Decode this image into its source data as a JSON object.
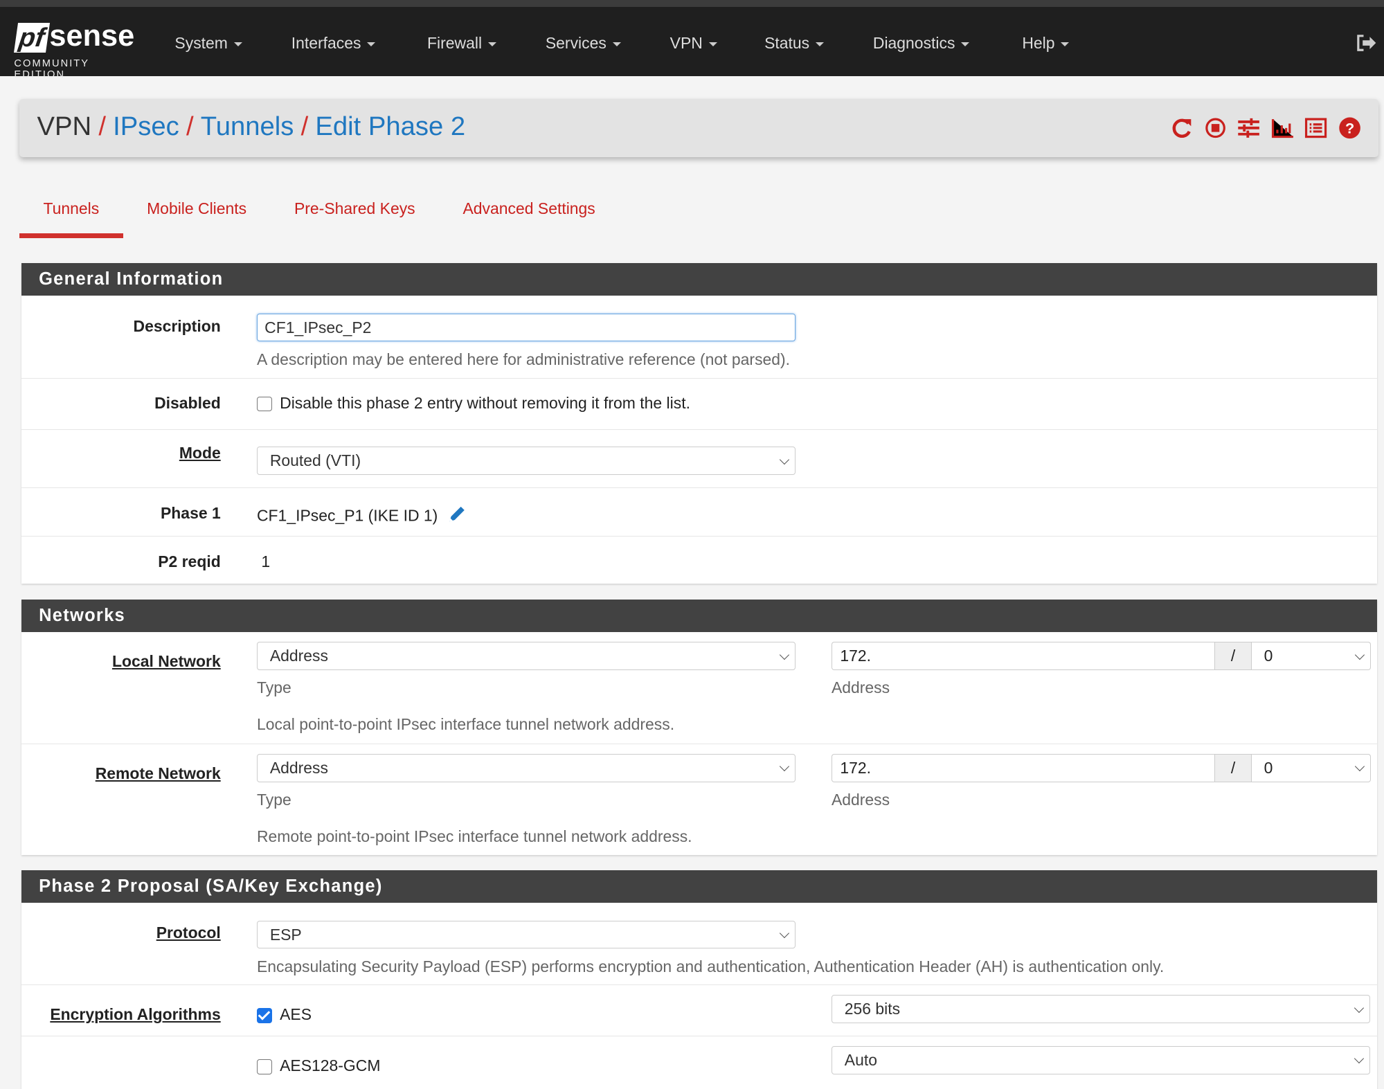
{
  "nav": {
    "logo_text": "pfsense",
    "logo_sub": "COMMUNITY EDITION",
    "menus": [
      "System",
      "Interfaces",
      "Firewall",
      "Services",
      "VPN",
      "Status",
      "Diagnostics",
      "Help"
    ]
  },
  "breadcrumb": {
    "root": "VPN",
    "items": [
      "IPsec",
      "Tunnels",
      "Edit Phase 2"
    ]
  },
  "header_icons": [
    "restart-icon",
    "stop-icon",
    "sliders-icon",
    "bar-chart-icon",
    "list-icon",
    "help-icon"
  ],
  "accent_color": "#d0312d",
  "tabs": [
    "Tunnels",
    "Mobile Clients",
    "Pre-Shared Keys",
    "Advanced Settings"
  ],
  "general": {
    "title": "General Information",
    "description": {
      "label": "Description",
      "value": "CF1_IPsec_P2",
      "help": "A description may be entered here for administrative reference (not parsed)."
    },
    "disabled": {
      "label": "Disabled",
      "text": "Disable this phase 2 entry without removing it from the list.",
      "checked": false
    },
    "mode": {
      "label": "Mode",
      "value": "Routed (VTI)"
    },
    "phase1": {
      "label": "Phase 1",
      "value": "CF1_IPsec_P1 (IKE ID 1)"
    },
    "reqid": {
      "label": "P2 reqid",
      "value": "1"
    }
  },
  "networks": {
    "title": "Networks",
    "local": {
      "label": "Local Network",
      "type": "Address",
      "type_caption": "Type",
      "address": "172.",
      "slash": "/",
      "mask": "0",
      "address_caption": "Address",
      "help": "Local point-to-point IPsec interface tunnel network address."
    },
    "remote": {
      "label": "Remote Network",
      "type": "Address",
      "type_caption": "Type",
      "address": "172.",
      "slash": "/",
      "mask": "0",
      "address_caption": "Address",
      "help": "Remote point-to-point IPsec interface tunnel network address."
    }
  },
  "phase2": {
    "title": "Phase 2 Proposal (SA/Key Exchange)",
    "protocol": {
      "label": "Protocol",
      "value": "ESP",
      "help": "Encapsulating Security Payload (ESP) performs encryption and authentication, Authentication Header (AH) is authentication only."
    },
    "enc": {
      "label": "Encryption Algorithms",
      "items": [
        {
          "name": "AES",
          "checked": true,
          "keylen": "256 bits"
        },
        {
          "name": "AES128-GCM",
          "checked": false,
          "keylen": "Auto"
        }
      ]
    }
  }
}
